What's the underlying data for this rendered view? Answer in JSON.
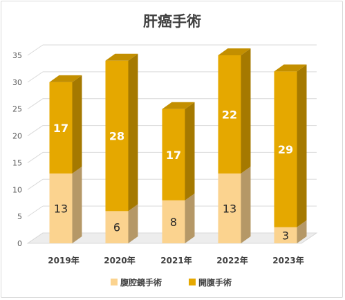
{
  "chart_data": {
    "type": "bar",
    "stacked": true,
    "title": "肝癌手術",
    "categories": [
      "2019年",
      "2020年",
      "2021年",
      "2022年",
      "2023年"
    ],
    "series": [
      {
        "name": "腹腔鏡手術",
        "values": [
          13,
          6,
          8,
          13,
          3
        ],
        "color": "#fbd38f"
      },
      {
        "name": "開腹手術",
        "values": [
          17,
          28,
          17,
          22,
          29
        ],
        "color": "#e5a800"
      }
    ],
    "ylim": [
      0,
      35
    ],
    "yticks": [
      0,
      5,
      10,
      15,
      20,
      25,
      30,
      35
    ],
    "grid": true,
    "legend": "bottom"
  }
}
